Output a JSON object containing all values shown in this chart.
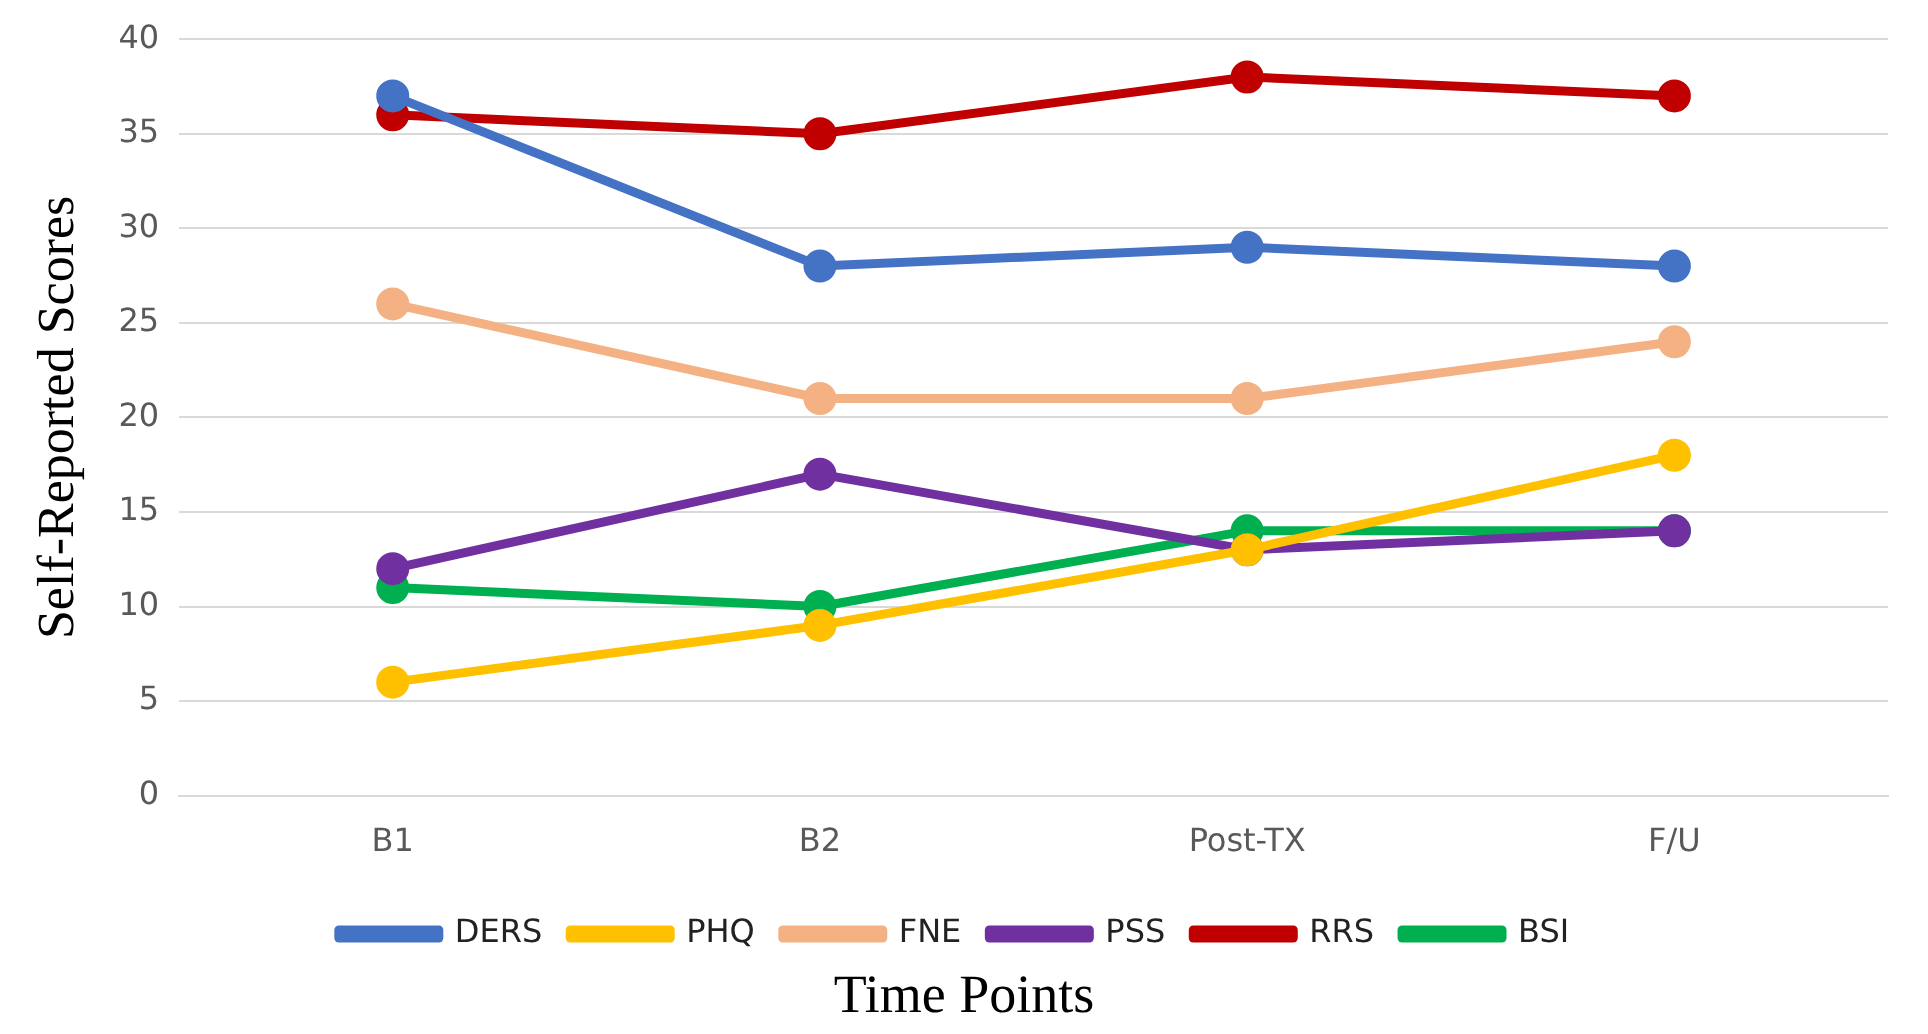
{
  "chart_data": {
    "type": "line",
    "xlabel": "Time Points",
    "ylabel": "Self-Reported Scores",
    "categories": [
      "B1",
      "B2",
      "Post-TX",
      "F/U"
    ],
    "series": [
      {
        "name": "DERS",
        "color": "#4472c4",
        "values": [
          37,
          28,
          29,
          28
        ]
      },
      {
        "name": "PHQ",
        "color": "#ffc000",
        "values": [
          6,
          9,
          13,
          18
        ]
      },
      {
        "name": "FNE",
        "color": "#f4b183",
        "values": [
          26,
          21,
          21,
          24
        ]
      },
      {
        "name": "PSS",
        "color": "#7030a0",
        "values": [
          12,
          17,
          13,
          14
        ]
      },
      {
        "name": "RRS",
        "color": "#c00000",
        "values": [
          36,
          35,
          38,
          37
        ]
      },
      {
        "name": "BSI",
        "color": "#00b050",
        "values": [
          11,
          10,
          14,
          14
        ]
      }
    ],
    "ylim": [
      0,
      40
    ],
    "yticks": [
      0,
      5,
      10,
      15,
      20,
      25,
      30,
      35,
      40
    ],
    "grid": "y",
    "legend": "bottom",
    "marker": "circle",
    "line_style": "solid"
  }
}
